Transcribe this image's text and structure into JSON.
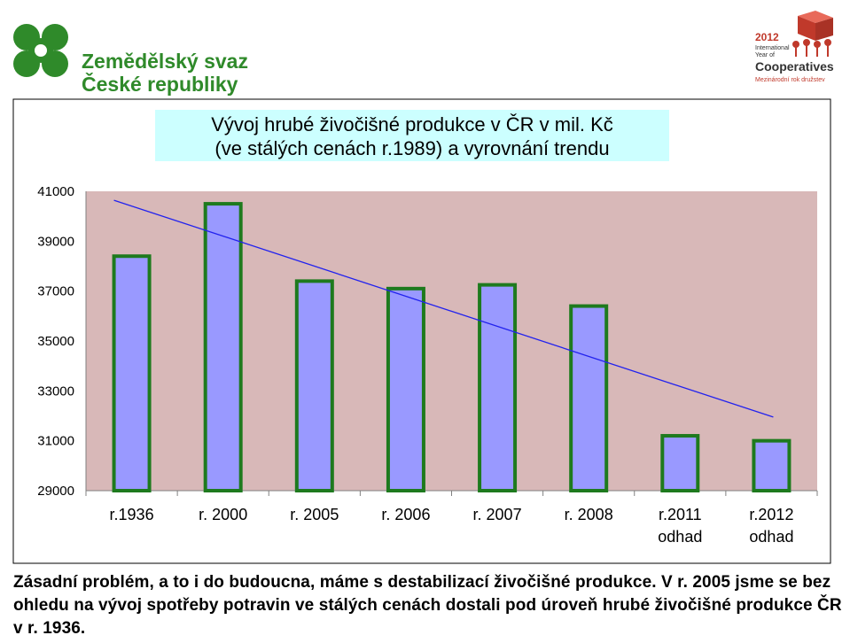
{
  "header": {
    "org_name_line1": "Zemědělský svaz",
    "org_name_line2": "České republiky",
    "coop_year": "2012",
    "coop_intl_line1": "International",
    "coop_intl_line2": "Year of",
    "coop_title": "Cooperatives",
    "coop_subtitle": "Mezinárodní rok družstev"
  },
  "chart_data": {
    "type": "bar",
    "title_line1": "Vývoj hrubé živočišné produkce v ČR v mil. Kč",
    "title_line2": "(ve stálých cenách r.1989) a vyrovnání trendu",
    "categories": [
      [
        "r.1936"
      ],
      [
        "r. 2000"
      ],
      [
        "r. 2005"
      ],
      [
        "r. 2006"
      ],
      [
        "r. 2007"
      ],
      [
        "r. 2008"
      ],
      [
        "r.2011",
        "odhad"
      ],
      [
        "r.2012",
        "odhad"
      ]
    ],
    "values": [
      38400,
      40500,
      37400,
      37100,
      37250,
      36400,
      31200,
      31000
    ],
    "trend": {
      "start": 40500,
      "end": 31950
    },
    "ylim": [
      29000,
      41000
    ],
    "yticks": [
      "41000",
      "39000",
      "37000",
      "35000",
      "33000",
      "31000",
      "29000"
    ],
    "colors": {
      "plot_bg": "#d8b8b8",
      "bar_fill": "#9999ff",
      "bar_edge": "#1e7a1e",
      "trend": "#2222ee",
      "title_bg": "#ccffff"
    },
    "grid": false
  },
  "note": "Zásadní problém, a to i do budoucna, máme s destabilizací živočišné produkce. V r. 2005 jsme se bez ohledu na vývoj spotřeby potravin ve stálých cenách dostali pod úroveň hrubé živočišné produkce ČR v r. 1936."
}
